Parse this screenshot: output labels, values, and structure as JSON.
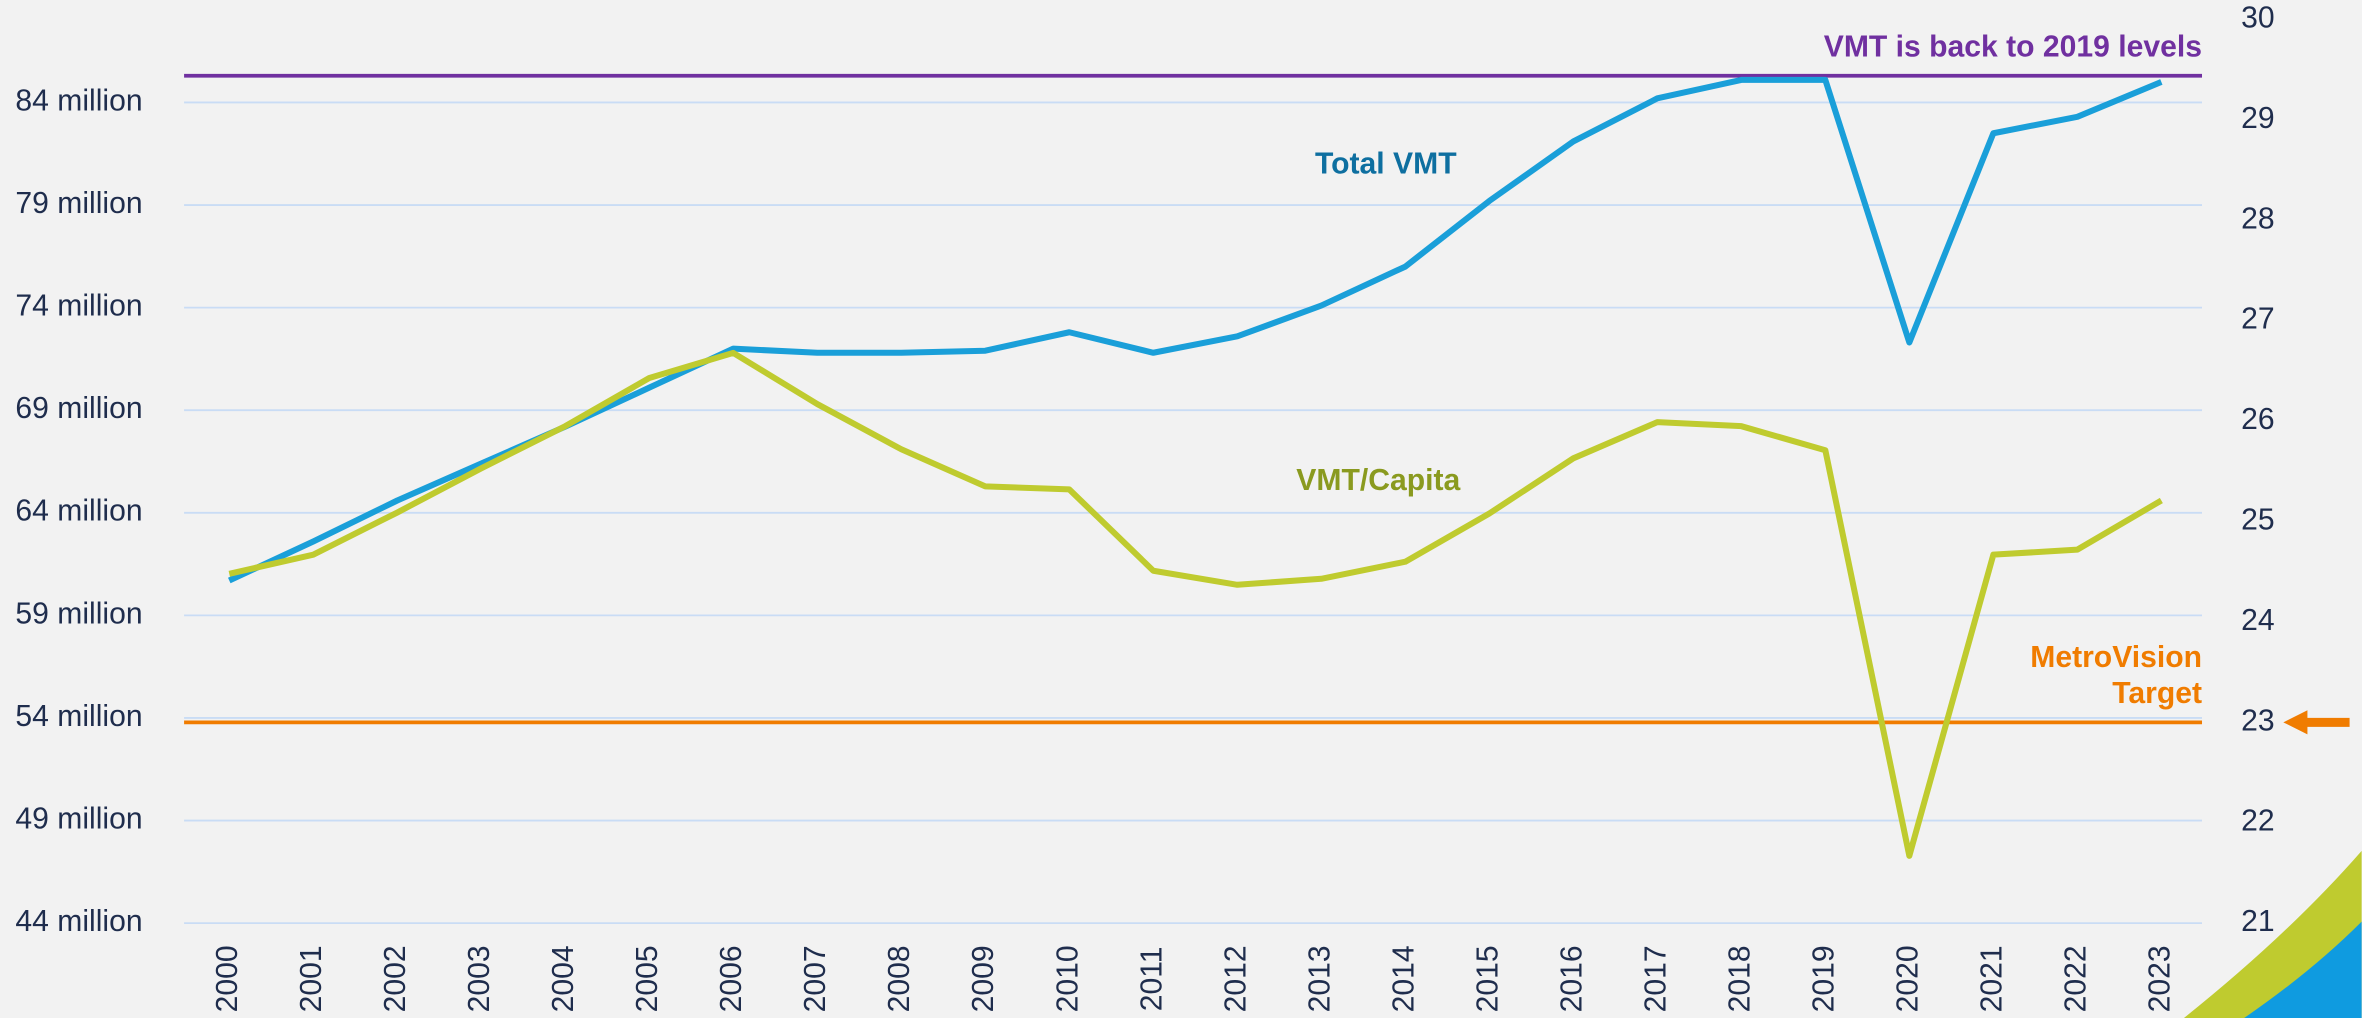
{
  "chart_data": {
    "type": "line",
    "categories": [
      "2000",
      "2001",
      "2002",
      "2003",
      "2004",
      "2005",
      "2006",
      "2007",
      "2008",
      "2009",
      "2010",
      "2011",
      "2012",
      "2013",
      "2014",
      "2015",
      "2016",
      "2017",
      "2018",
      "2019",
      "2020",
      "2021",
      "2022",
      "2023"
    ],
    "series": [
      {
        "name": "Total VMT",
        "color": "#1a9fd9",
        "label_color": "#0e6fa0",
        "values": [
          60.7,
          62.6,
          64.6,
          66.4,
          68.2,
          70.1,
          72.0,
          71.8,
          71.8,
          71.9,
          72.8,
          71.8,
          72.6,
          74.1,
          76.0,
          79.2,
          82.1,
          84.2,
          85.1,
          85.1,
          72.3,
          82.5,
          83.3,
          85.0
        ]
      },
      {
        "name": "VMT/Capita",
        "color": "#bfcb2f",
        "label_color": "#8a9a1f",
        "axis": "y2",
        "values": [
          24.48,
          24.67,
          25.09,
          25.53,
          25.95,
          26.43,
          26.68,
          26.17,
          25.72,
          25.35,
          25.32,
          24.51,
          24.37,
          24.43,
          24.6,
          25.08,
          25.63,
          25.99,
          25.95,
          25.71,
          21.67,
          24.67,
          24.72,
          25.21
        ]
      }
    ],
    "ylim": [
      44,
      88.04
    ],
    "yticks": [
      {
        "value": 44,
        "label": "44  million"
      },
      {
        "value": 49,
        "label": "49  million"
      },
      {
        "value": 54,
        "label": "54  million"
      },
      {
        "value": 59,
        "label": "59  million"
      },
      {
        "value": 64,
        "label": "64  million"
      },
      {
        "value": 69,
        "label": "69  million"
      },
      {
        "value": 74,
        "label": "74  million"
      },
      {
        "value": 79,
        "label": "79  million"
      },
      {
        "value": 84,
        "label": "84  million"
      }
    ],
    "y2lim": [
      21,
      30
    ],
    "y2ticks": [
      21,
      22,
      23,
      24,
      25,
      26,
      27,
      28,
      29,
      30
    ],
    "grid": true,
    "reference_lines": [
      {
        "value": 85.3,
        "axis": "y",
        "color": "#7030a0",
        "label": [
          "VMT is back to 2019 levels"
        ]
      },
      {
        "value": 23,
        "axis": "y2",
        "color": "#f07c00",
        "label": [
          "MetroVision",
          "Target"
        ]
      }
    ]
  }
}
